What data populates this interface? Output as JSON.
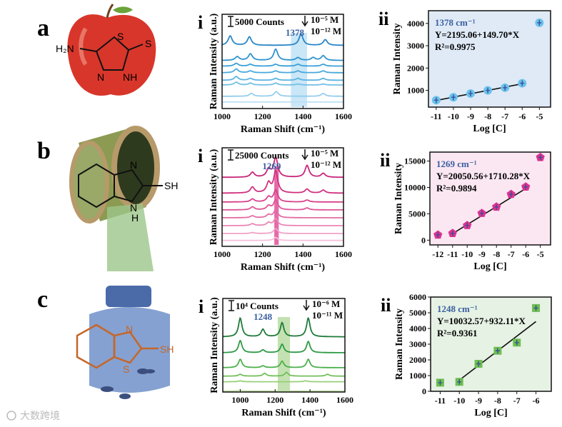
{
  "panels": {
    "a": {
      "label": "a",
      "atoms": [
        "H₂N",
        "S",
        "S",
        "N",
        "NH"
      ]
    },
    "b": {
      "label": "b",
      "atoms": [
        "N",
        "SH",
        "N",
        "H"
      ]
    },
    "c": {
      "label": "c",
      "atoms": [
        "N",
        "SH",
        "S"
      ]
    }
  },
  "watermark": "大数跨境",
  "colors": {
    "blue_bg": "#dfeaf6",
    "pink_bg": "#fbe7f2",
    "green_bg": "#e6f2e4",
    "blue_peak": "#3a5fa0"
  },
  "chart_data": [
    {
      "type": "line",
      "id": "a-i",
      "roman": "i",
      "xlabel": "Raman Shift (cm⁻¹)",
      "ylabel": "Raman Intensity (a.u.)",
      "xlim": [
        1000,
        1600
      ],
      "xticks": [
        1000,
        1200,
        1400,
        1600
      ],
      "scale_bar": "5000 Counts",
      "conc_high": "10⁻⁵ M",
      "conc_low": "10⁻¹² M",
      "peak_label": "1378",
      "band": [
        1340,
        1420
      ],
      "band_color": "#bfe3f6",
      "series": [
        {
          "offset": 67,
          "color": "#2a86c6",
          "peaks": [
            [
              1040,
              10
            ],
            [
              1135,
              9
            ],
            [
              1390,
              12
            ],
            [
              1510,
              6
            ]
          ]
        },
        {
          "offset": 51,
          "color": "#2e93cf",
          "peaks": [
            [
              1075,
              4
            ],
            [
              1140,
              7
            ],
            [
              1265,
              12
            ],
            [
              1375,
              3
            ],
            [
              1450,
              3
            ],
            [
              1500,
              5
            ]
          ]
        },
        {
          "offset": 45,
          "color": "#3aa0d8",
          "peaks": [
            [
              1070,
              3
            ],
            [
              1140,
              2
            ],
            [
              1265,
              2
            ],
            [
              1375,
              2
            ],
            [
              1500,
              2
            ]
          ]
        },
        {
          "offset": 38,
          "color": "#48a9dc",
          "peaks": [
            [
              1070,
              4
            ],
            [
              1140,
              2
            ],
            [
              1265,
              2
            ],
            [
              1375,
              2
            ],
            [
              1500,
              2
            ]
          ]
        },
        {
          "offset": 30,
          "color": "#5bb3e0",
          "peaks": [
            [
              1070,
              4
            ],
            [
              1140,
              2
            ],
            [
              1265,
              2
            ],
            [
              1375,
              2
            ],
            [
              1500,
              2
            ]
          ]
        },
        {
          "offset": 25,
          "color": "#74bfe5",
          "peaks": [
            [
              1070,
              3
            ],
            [
              1140,
              2
            ],
            [
              1265,
              2
            ],
            [
              1375,
              1
            ],
            [
              1500,
              1
            ]
          ]
        },
        {
          "offset": 13,
          "color": "#95cdec",
          "peaks": [
            [
              1145,
              3
            ],
            [
              1268,
              5
            ],
            [
              1500,
              3
            ]
          ]
        },
        {
          "offset": 7,
          "color": "#bfe0f3",
          "peaks": []
        }
      ]
    },
    {
      "type": "scatter",
      "id": "a-ii",
      "roman": "ii",
      "xlabel": "Log [C]",
      "ylabel": "Raman Intensity",
      "xlim": [
        -11.45,
        -4.35
      ],
      "ylim": [
        250,
        4570
      ],
      "xticks": [
        -11,
        -10,
        -9,
        -8,
        -7,
        -6,
        -5
      ],
      "yticks": [
        1000,
        2000,
        3000,
        4000
      ],
      "x": [
        -11,
        -10,
        -9,
        -8,
        -7,
        -6,
        -5
      ],
      "y": [
        560,
        690,
        860,
        1000,
        1120,
        1320,
        4030
      ],
      "fit": {
        "intercept": 2195.06,
        "slope": 149.7,
        "range": [
          -11,
          -6
        ]
      },
      "peak": "1378 cm⁻¹",
      "equation": "Y=2195.06+149.70*X",
      "r2": "R²=0.9975",
      "marker": "circle",
      "marker_color": "#6cc3ec"
    },
    {
      "type": "line",
      "id": "b-i",
      "roman": "i",
      "xlabel": "Raman Shift (cm⁻¹)",
      "ylabel": "Raman Intensity (a.u.)",
      "xlim": [
        1000,
        1600
      ],
      "xticks": [
        1000,
        1200,
        1400,
        1600
      ],
      "scale_bar": "25000 Counts",
      "conc_high": "10⁻⁵ M",
      "conc_low": "10⁻¹² M",
      "peak_label": "1269",
      "band": [
        1258,
        1280
      ],
      "band_color": "#e2509b",
      "series": [
        {
          "offset": 70,
          "color": "#c8267a",
          "peaks": [
            [
              1150,
              5
            ],
            [
              1230,
              8
            ],
            [
              1265,
              20
            ],
            [
              1420,
              12
            ],
            [
              1500,
              4
            ]
          ]
        },
        {
          "offset": 54,
          "color": "#d0307f",
          "peaks": [
            [
              1150,
              6
            ],
            [
              1230,
              10
            ],
            [
              1265,
              22
            ],
            [
              1420,
              4
            ],
            [
              1500,
              3
            ]
          ]
        },
        {
          "offset": 45,
          "color": "#d8418a",
          "peaks": [
            [
              1150,
              3
            ],
            [
              1230,
              5
            ],
            [
              1265,
              12
            ],
            [
              1420,
              2
            ]
          ]
        },
        {
          "offset": 37,
          "color": "#de5597",
          "peaks": [
            [
              1150,
              3
            ],
            [
              1230,
              4
            ],
            [
              1265,
              10
            ],
            [
              1420,
              2
            ]
          ]
        },
        {
          "offset": 29,
          "color": "#e46ca5",
          "peaks": [
            [
              1150,
              2
            ],
            [
              1230,
              3
            ],
            [
              1265,
              8
            ]
          ]
        },
        {
          "offset": 21,
          "color": "#ea86b5",
          "peaks": [
            [
              1150,
              2
            ],
            [
              1230,
              3
            ],
            [
              1265,
              7
            ]
          ]
        },
        {
          "offset": 13,
          "color": "#efa2c6",
          "peaks": [
            [
              1150,
              1
            ],
            [
              1265,
              5
            ]
          ]
        },
        {
          "offset": 6,
          "color": "#f4c2d9",
          "peaks": [
            [
              1265,
              3
            ]
          ]
        }
      ]
    },
    {
      "type": "scatter",
      "id": "b-ii",
      "roman": "ii",
      "xlabel": "Log [C]",
      "ylabel": "Raman Intensity",
      "xlim": [
        -12.55,
        -4.3
      ],
      "ylim": [
        -900,
        16700
      ],
      "xticks": [
        -12,
        -11,
        -10,
        -9,
        -8,
        -7,
        -6,
        -5
      ],
      "yticks": [
        0,
        5000,
        10000,
        15000
      ],
      "x": [
        -12,
        -11,
        -10,
        -9,
        -8,
        -7,
        -6,
        -5
      ],
      "y": [
        1000,
        1300,
        2800,
        5100,
        6300,
        8700,
        10100,
        15700
      ],
      "fit": {
        "intercept": 20050.56,
        "slope": 1710.28,
        "range": [
          -11,
          -6
        ]
      },
      "peak": "1269 cm⁻¹",
      "equation": "Y=20050.56+1710.28*X",
      "r2": "R²=0.9894",
      "marker": "pentagon",
      "marker_color": "#e0338f"
    },
    {
      "type": "line",
      "id": "c-i",
      "roman": "i",
      "xlabel": "Raman Shift (cm⁻¹)",
      "ylabel": "Raman Intensity (a.u.)",
      "xlim": [
        900,
        1600
      ],
      "xticks": [
        1000,
        1200,
        1400,
        1600
      ],
      "scale_bar": "10⁴ Counts",
      "conc_high": "10⁻⁶ M",
      "conc_low": "10⁻¹¹ M",
      "peak_label": "1248",
      "band": [
        1215,
        1285
      ],
      "band_color": "#b9dca3",
      "series": [
        {
          "offset": 59,
          "color": "#1f7a3a",
          "peaks": [
            [
              1000,
              20
            ],
            [
              1130,
              8
            ],
            [
              1240,
              15
            ],
            [
              1390,
              20
            ]
          ]
        },
        {
          "offset": 42,
          "color": "#2e9a46",
          "peaks": [
            [
              1000,
              13
            ],
            [
              1130,
              3
            ],
            [
              1240,
              9
            ],
            [
              1390,
              12
            ]
          ]
        },
        {
          "offset": 26,
          "color": "#4cb04c",
          "peaks": [
            [
              1000,
              9
            ],
            [
              1130,
              2
            ],
            [
              1240,
              7
            ],
            [
              1390,
              9
            ]
          ]
        },
        {
          "offset": 17,
          "color": "#72bf5a",
          "peaks": [
            [
              1000,
              2
            ],
            [
              1140,
              3
            ],
            [
              1265,
              4
            ],
            [
              1500,
              2
            ]
          ]
        },
        {
          "offset": 11,
          "color": "#98cf7a",
          "peaks": [
            [
              1000,
              1
            ],
            [
              1375,
              1
            ]
          ]
        },
        {
          "offset": 1,
          "color": "#c3e2a8",
          "peaks": [
            [
              1000,
              1
            ]
          ]
        }
      ]
    },
    {
      "type": "scatter",
      "id": "c-ii",
      "roman": "ii",
      "xlabel": "Log [C]",
      "ylabel": "Raman Intensity",
      "xlim": [
        -11.5,
        -5.2
      ],
      "ylim": [
        0,
        6000
      ],
      "xticks": [
        -11,
        -10,
        -9,
        -8,
        -7,
        -6
      ],
      "yticks": [
        0,
        1000,
        2000,
        3000,
        4000,
        5000,
        6000
      ],
      "x": [
        -11,
        -10,
        -9,
        -8,
        -7,
        -6
      ],
      "y": [
        550,
        600,
        1750,
        2580,
        3100,
        5300
      ],
      "fit": {
        "intercept": 10032.57,
        "slope": 932.11,
        "range": [
          -10,
          -6
        ]
      },
      "peak": "1248 cm⁻¹",
      "equation": "Y=10032.57+932.11*X",
      "r2": "R²=0.9361",
      "marker": "square",
      "marker_color": "#6dbf4f"
    }
  ]
}
